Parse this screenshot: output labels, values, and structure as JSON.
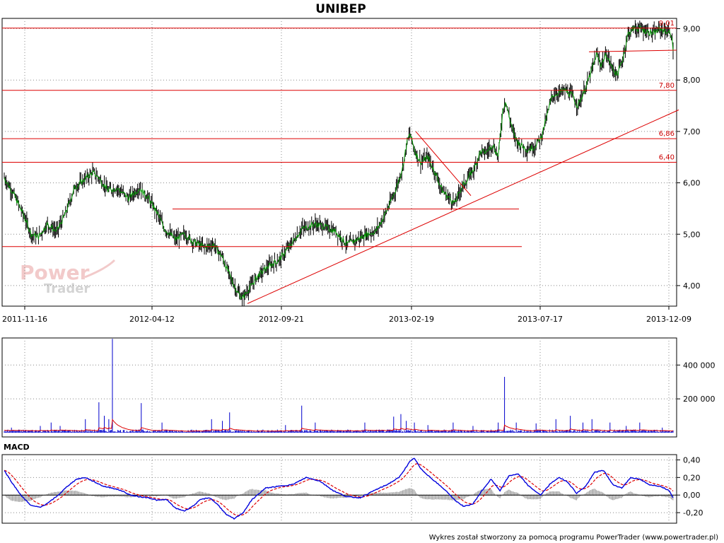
{
  "chart_data": {
    "type": "candlestick",
    "title": "UNIBEP",
    "x_ticks": [
      "2011-11-16",
      "2012-04-12",
      "2012-09-21",
      "2013-02-19",
      "2013-07-17",
      "2013-12-09"
    ],
    "price": {
      "ylim": [
        3.6,
        9.2
      ],
      "y_ticks": [
        "4,00",
        "5,00",
        "6,00",
        "7,00",
        "8,00",
        "9,00"
      ],
      "y_tick_values": [
        4,
        5,
        6,
        7,
        8,
        9
      ],
      "levels": [
        {
          "value": 9.01,
          "label": "9,01"
        },
        {
          "value": 7.8,
          "label": "7,80"
        },
        {
          "value": 6.86,
          "label": "6,86"
        },
        {
          "value": 6.4,
          "label": "6,40"
        }
      ],
      "close_anchors": [
        [
          0,
          6.1
        ],
        [
          10,
          5.8
        ],
        [
          22,
          5.35
        ],
        [
          30,
          5.0
        ],
        [
          38,
          4.95
        ],
        [
          48,
          5.2
        ],
        [
          58,
          5.05
        ],
        [
          68,
          5.4
        ],
        [
          78,
          5.9
        ],
        [
          88,
          6.05
        ],
        [
          98,
          6.2
        ],
        [
          105,
          6.1
        ],
        [
          115,
          5.85
        ],
        [
          125,
          5.9
        ],
        [
          138,
          5.7
        ],
        [
          150,
          5.9
        ],
        [
          160,
          5.7
        ],
        [
          170,
          5.4
        ],
        [
          178,
          5.1
        ],
        [
          190,
          4.9
        ],
        [
          200,
          5.0
        ],
        [
          210,
          4.85
        ],
        [
          222,
          4.75
        ],
        [
          232,
          4.8
        ],
        [
          242,
          4.55
        ],
        [
          250,
          4.2
        ],
        [
          258,
          3.9
        ],
        [
          264,
          3.75
        ],
        [
          272,
          3.95
        ],
        [
          282,
          4.2
        ],
        [
          295,
          4.4
        ],
        [
          305,
          4.5
        ],
        [
          318,
          4.8
        ],
        [
          330,
          5.1
        ],
        [
          345,
          5.2
        ],
        [
          355,
          5.15
        ],
        [
          368,
          5.05
        ],
        [
          380,
          4.8
        ],
        [
          392,
          4.9
        ],
        [
          402,
          5.0
        ],
        [
          412,
          5.05
        ],
        [
          420,
          5.3
        ],
        [
          428,
          5.6
        ],
        [
          435,
          5.9
        ],
        [
          442,
          6.3
        ],
        [
          447,
          6.8
        ],
        [
          450,
          6.95
        ],
        [
          456,
          6.6
        ],
        [
          462,
          6.4
        ],
        [
          470,
          6.5
        ],
        [
          478,
          6.2
        ],
        [
          486,
          5.85
        ],
        [
          494,
          5.7
        ],
        [
          500,
          5.6
        ],
        [
          507,
          5.9
        ],
        [
          515,
          6.1
        ],
        [
          522,
          6.3
        ],
        [
          528,
          6.6
        ],
        [
          535,
          6.6
        ],
        [
          542,
          6.75
        ],
        [
          548,
          6.5
        ],
        [
          553,
          7.4
        ],
        [
          556,
          7.6
        ],
        [
          560,
          7.3
        ],
        [
          566,
          6.9
        ],
        [
          572,
          6.75
        ],
        [
          580,
          6.65
        ],
        [
          588,
          6.7
        ],
        [
          596,
          6.9
        ],
        [
          602,
          7.3
        ],
        [
          608,
          7.7
        ],
        [
          615,
          7.75
        ],
        [
          622,
          7.8
        ],
        [
          630,
          7.7
        ],
        [
          636,
          7.5
        ],
        [
          640,
          7.65
        ],
        [
          646,
          7.9
        ],
        [
          652,
          8.2
        ],
        [
          657,
          8.5
        ],
        [
          662,
          8.3
        ],
        [
          668,
          8.5
        ],
        [
          674,
          8.25
        ],
        [
          680,
          8.1
        ],
        [
          686,
          8.4
        ],
        [
          692,
          8.9
        ],
        [
          698,
          9.0
        ],
        [
          705,
          9.0
        ],
        [
          713,
          8.95
        ],
        [
          720,
          8.9
        ],
        [
          728,
          9.0
        ],
        [
          734,
          8.95
        ],
        [
          740,
          8.9
        ],
        [
          742,
          8.6
        ]
      ]
    },
    "volume": {
      "y_ticks": [
        "200 000",
        "400 000"
      ],
      "y_tick_values": [
        200000,
        400000
      ],
      "ylim": [
        0,
        560000
      ],
      "spikes": [
        [
          8,
          30000
        ],
        [
          40,
          40000
        ],
        [
          52,
          60000
        ],
        [
          62,
          40000
        ],
        [
          90,
          80000
        ],
        [
          105,
          180000
        ],
        [
          111,
          100000
        ],
        [
          116,
          80000
        ],
        [
          120,
          555000
        ],
        [
          152,
          175000
        ],
        [
          175,
          60000
        ],
        [
          230,
          80000
        ],
        [
          242,
          70000
        ],
        [
          250,
          120000
        ],
        [
          312,
          45000
        ],
        [
          330,
          160000
        ],
        [
          345,
          60000
        ],
        [
          400,
          60000
        ],
        [
          432,
          95000
        ],
        [
          440,
          110000
        ],
        [
          446,
          70000
        ],
        [
          455,
          60000
        ],
        [
          470,
          45000
        ],
        [
          498,
          60000
        ],
        [
          520,
          40000
        ],
        [
          548,
          60000
        ],
        [
          555,
          330000
        ],
        [
          568,
          60000
        ],
        [
          590,
          55000
        ],
        [
          612,
          80000
        ],
        [
          628,
          100000
        ],
        [
          642,
          60000
        ],
        [
          652,
          80000
        ],
        [
          672,
          60000
        ],
        [
          690,
          40000
        ],
        [
          705,
          60000
        ],
        [
          730,
          30000
        ]
      ]
    },
    "macd": {
      "label": "MACD",
      "y_ticks": [
        "-0,20",
        "0,00",
        "0,20",
        "0,40"
      ],
      "y_tick_values": [
        -0.2,
        0,
        0.2,
        0.4
      ],
      "ylim": [
        -0.32,
        0.46
      ],
      "anchors": [
        [
          0,
          0.28
        ],
        [
          10,
          0.12
        ],
        [
          20,
          -0.02
        ],
        [
          30,
          -0.12
        ],
        [
          40,
          -0.14
        ],
        [
          50,
          -0.08
        ],
        [
          60,
          0.0
        ],
        [
          70,
          0.1
        ],
        [
          80,
          0.18
        ],
        [
          90,
          0.2
        ],
        [
          100,
          0.15
        ],
        [
          110,
          0.1
        ],
        [
          120,
          0.08
        ],
        [
          130,
          0.05
        ],
        [
          140,
          0.0
        ],
        [
          150,
          -0.02
        ],
        [
          160,
          -0.03
        ],
        [
          170,
          -0.06
        ],
        [
          180,
          -0.05
        ],
        [
          190,
          -0.15
        ],
        [
          200,
          -0.18
        ],
        [
          210,
          -0.12
        ],
        [
          218,
          -0.05
        ],
        [
          228,
          -0.03
        ],
        [
          238,
          -0.12
        ],
        [
          246,
          -0.22
        ],
        [
          255,
          -0.27
        ],
        [
          265,
          -0.2
        ],
        [
          275,
          -0.05
        ],
        [
          290,
          0.08
        ],
        [
          305,
          0.1
        ],
        [
          320,
          0.12
        ],
        [
          335,
          0.2
        ],
        [
          350,
          0.16
        ],
        [
          365,
          0.05
        ],
        [
          380,
          -0.02
        ],
        [
          395,
          -0.03
        ],
        [
          410,
          0.05
        ],
        [
          425,
          0.12
        ],
        [
          438,
          0.2
        ],
        [
          450,
          0.38
        ],
        [
          455,
          0.42
        ],
        [
          462,
          0.3
        ],
        [
          475,
          0.18
        ],
        [
          490,
          0.05
        ],
        [
          500,
          -0.06
        ],
        [
          510,
          -0.13
        ],
        [
          520,
          -0.1
        ],
        [
          530,
          0.05
        ],
        [
          540,
          0.18
        ],
        [
          550,
          0.05
        ],
        [
          560,
          0.22
        ],
        [
          570,
          0.24
        ],
        [
          582,
          0.1
        ],
        [
          595,
          0.0
        ],
        [
          605,
          0.12
        ],
        [
          615,
          0.2
        ],
        [
          625,
          0.15
        ],
        [
          635,
          0.02
        ],
        [
          645,
          0.1
        ],
        [
          655,
          0.26
        ],
        [
          665,
          0.28
        ],
        [
          675,
          0.12
        ],
        [
          685,
          0.08
        ],
        [
          695,
          0.2
        ],
        [
          705,
          0.18
        ],
        [
          715,
          0.12
        ],
        [
          728,
          0.1
        ],
        [
          738,
          0.05
        ],
        [
          742,
          -0.03
        ]
      ]
    },
    "colors": {
      "candle": "#000000",
      "close_line": "#009900",
      "resistance": "#dd0000",
      "volume_bar": "#0000cc",
      "volume_avg": "#dd0000",
      "macd_line": "#0000dd",
      "signal_line": "#dd0000",
      "histogram": "#aaaaaa",
      "grid": "#888888"
    }
  },
  "watermark": {
    "line1": "Power",
    "line2": "Trader"
  },
  "footer": "Wykres został stworzony za pomocą programu PowerTrader (www.powertrader.pl)"
}
